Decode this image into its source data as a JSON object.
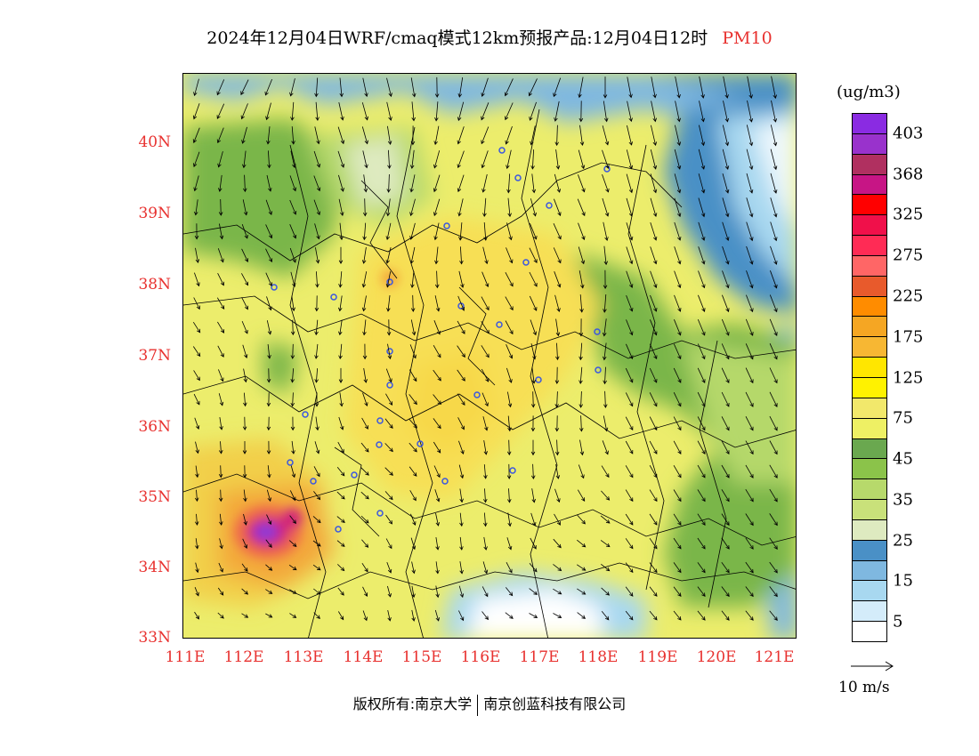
{
  "title": {
    "main": "2024年12月04日WRF/cmaq模式12km预报产品:12月04日12时",
    "variable": "PM10"
  },
  "map": {
    "lat_labels": [
      "40N",
      "39N",
      "38N",
      "37N",
      "36N",
      "35N",
      "34N",
      "33N"
    ],
    "lon_labels": [
      "111E",
      "112E",
      "113E",
      "114E",
      "115E",
      "116E",
      "117E",
      "118E",
      "119E",
      "120E",
      "121E"
    ],
    "colors": {
      "sea_deep": "#4a90c6",
      "sea_mid": "#7fb8e0",
      "sea_light": "#cfe9f7",
      "low_green": "#7ab648",
      "mid_green": "#b5d86a",
      "yellow": "#eded6e",
      "gold": "#f7d84a",
      "orange": "#f3a73b",
      "hotspot_purple": "#8e3ad6",
      "hotspot_red": "#d0217a"
    }
  },
  "legend": {
    "unit": "(ug/m3)",
    "colors": [
      "#8a2be2",
      "#9932cc",
      "#b03060",
      "#c71585",
      "#ff0000",
      "#f0104a",
      "#ff2b55",
      "#ff6666",
      "#e85a2c",
      "#ff8c00",
      "#f5a623",
      "#f7b733",
      "#ffe600",
      "#fff200",
      "#f2e86b",
      "#eef064",
      "#6aa84f",
      "#8bc34a",
      "#b7d96b",
      "#c9e17a",
      "#deeac0",
      "#4a90c6",
      "#7fb8e0",
      "#a8d8f0",
      "#d4ecfa",
      "#ffffff"
    ],
    "labels": [
      "403",
      "368",
      "325",
      "275",
      "225",
      "175",
      "125",
      "75",
      "45",
      "35",
      "25",
      "15",
      "5"
    ],
    "wind_ref": "10 m/s"
  },
  "footer": {
    "left": "版权所有:南京大学",
    "right": "南京创蓝科技有限公司"
  }
}
